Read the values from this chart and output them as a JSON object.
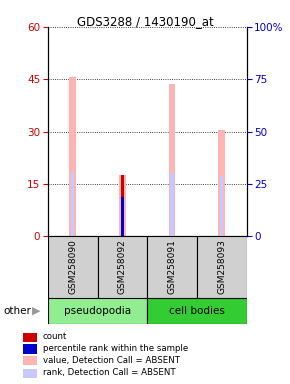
{
  "title": "GDS3288 / 1430190_at",
  "samples": [
    "GSM258090",
    "GSM258092",
    "GSM258091",
    "GSM258093"
  ],
  "ylim_left": [
    0,
    60
  ],
  "ylim_right": [
    0,
    100
  ],
  "yticks_left": [
    0,
    15,
    30,
    45,
    60
  ],
  "yticks_right": [
    0,
    25,
    50,
    75,
    100
  ],
  "bars": [
    {
      "sample": "GSM258090",
      "count": null,
      "rank": null,
      "value_absent": 45.5,
      "rank_absent": 30.5
    },
    {
      "sample": "GSM258092",
      "count": 17.5,
      "rank": 18.5,
      "value_absent": 17.5,
      "rank_absent": null
    },
    {
      "sample": "GSM258091",
      "count": null,
      "rank": null,
      "value_absent": 43.5,
      "rank_absent": 30.2
    },
    {
      "sample": "GSM258093",
      "count": null,
      "rank": null,
      "value_absent": 30.5,
      "rank_absent": 28.8
    }
  ],
  "color_count": "#cc0000",
  "color_rank": "#0000cc",
  "color_value_absent": "#ffb3b3",
  "color_rank_absent": "#c8c8ff",
  "color_gray_box": "#d0d0d0",
  "color_pseudo_green": "#90ee90",
  "color_cell_green": "#33cc33",
  "legend_items": [
    {
      "label": "count",
      "color": "#cc0000"
    },
    {
      "label": "percentile rank within the sample",
      "color": "#0000cc"
    },
    {
      "label": "value, Detection Call = ABSENT",
      "color": "#ffb3b3"
    },
    {
      "label": "rank, Detection Call = ABSENT",
      "color": "#c8c8ff"
    }
  ],
  "ylabel_left_color": "#cc0000",
  "ylabel_right_color": "#0000cc"
}
